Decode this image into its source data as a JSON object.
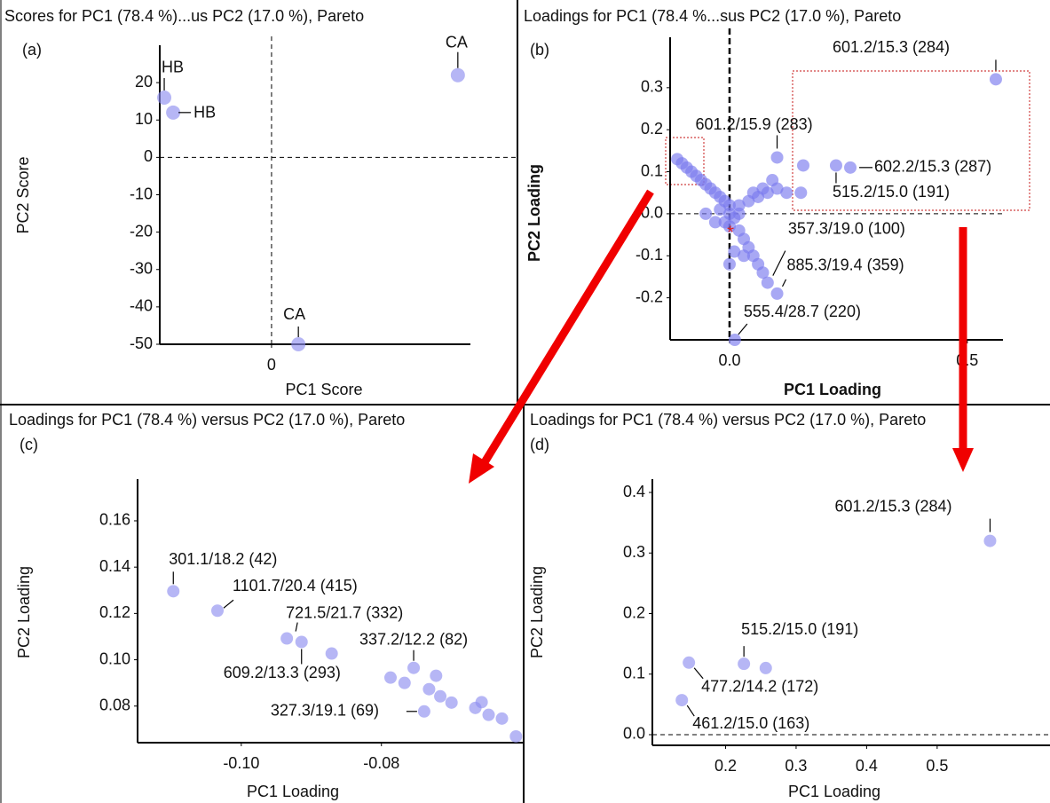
{
  "chart_data": [
    {
      "type": "scatter",
      "title": "Scores for PC1 (78.4 %)...us PC2 (17.0 %), Pareto",
      "panel": "(a)",
      "x_label": "PC1 Score",
      "y_label": "PC2 Score",
      "xlim": [
        -30,
        66
      ],
      "ylim": [
        -50,
        30
      ],
      "xticks": [
        0
      ],
      "yticks": [
        -50,
        -40,
        -30,
        -20,
        -10,
        0,
        10,
        20
      ],
      "zero_lines": [
        "x",
        "y"
      ],
      "series": [
        {
          "color": "#8f8ff0",
          "x": [
            -28.8,
            -26.4,
            50,
            7.2
          ],
          "values": [
            16,
            12,
            22,
            -50
          ],
          "labels": [
            "HB",
            "HB",
            "CA",
            "CA"
          ]
        }
      ]
    },
    {
      "type": "scatter",
      "title": "Loadings for PC1 (78.4 %...sus PC2 (17.0 %), Pareto",
      "panel": "(b)",
      "x_label": "PC1 Loading",
      "y_label": "PC2 Loading",
      "xlim": [
        -0.125,
        0.575
      ],
      "ylim": [
        -0.3,
        0.42
      ],
      "xticks": [
        {
          "value": 0,
          "label": "0.0"
        },
        0.5
      ],
      "yticks": [
        -0.2,
        -0.1,
        {
          "value": 0,
          "label": "0.0"
        },
        0.1,
        0.2,
        0.3
      ],
      "zero_lines": [
        "x",
        "y"
      ],
      "series": [
        {
          "color": "#7a7aee",
          "x": [
            0.56,
            0.1,
            0.254,
            0.224,
            0.08,
            0.1,
            0.011,
            -0.11,
            -0.1,
            -0.09,
            -0.08,
            -0.07,
            -0.06,
            -0.05,
            -0.04,
            -0.03,
            -0.02,
            -0.01,
            0,
            0,
            0.01,
            0,
            -0.01,
            0.02,
            0.02,
            0.04,
            0.06,
            0.08,
            0.1,
            0.12,
            0.15,
            0.155,
            0.09,
            0.07,
            0.05,
            0.02,
            0.03,
            0.04,
            0.05,
            0.06,
            0.07,
            0,
            0.01,
            0.03,
            -0.03,
            -0.05,
            -0.02
          ],
          "values": [
            0.32,
            0.134,
            0.11,
            0.115,
            -0.164,
            -0.19,
            -0.3,
            0.13,
            0.12,
            0.11,
            0.1,
            0.09,
            0.08,
            0.07,
            0.06,
            0.05,
            0.04,
            0.03,
            0.02,
            0,
            -0.01,
            -0.03,
            -0.02,
            0,
            0.02,
            0.03,
            0.04,
            0.05,
            0.06,
            0.05,
            0.05,
            0.115,
            0.08,
            0.06,
            0.05,
            -0.04,
            -0.06,
            -0.08,
            -0.1,
            -0.12,
            -0.14,
            -0.12,
            -0.09,
            -0.1,
            -0.02,
            0,
            0.01
          ],
          "labels": [
            "601.2/15.3 (284)",
            "601.2/15.9 (283)",
            "602.2/15.3 (287)",
            "515.2/15.0 (191)",
            "357.3/19.0 (100)",
            "885.3/19.4 (359)",
            "555.4/28.7 (220)",
            null,
            null,
            null,
            null,
            null,
            null,
            null,
            null,
            null,
            null,
            null,
            null,
            null,
            null,
            null,
            null,
            null,
            null,
            null,
            null,
            null,
            null,
            null,
            null,
            null,
            null,
            null,
            null,
            null,
            null,
            null,
            null,
            null,
            null,
            null,
            null,
            null,
            null,
            null,
            null
          ]
        }
      ]
    },
    {
      "type": "scatter",
      "title": "Loadings for PC1 (78.4 %) versus PC2 (17.0 %), Pareto",
      "panel": "(c)",
      "x_label": "PC1 Loading",
      "y_label": "PC2 Loading",
      "xlim": [
        -0.1148,
        -0.0597
      ],
      "ylim": [
        0.0642,
        0.178
      ],
      "xticks": [
        {
          "value": -0.1,
          "label": "-0.10"
        },
        -0.08
      ],
      "yticks": [
        0.08,
        {
          "value": 0.1,
          "label": "0.10"
        },
        0.12,
        0.14,
        0.16
      ],
      "zero_lines": [],
      "series": [
        {
          "color": "#8f8ff0",
          "x": [
            -0.1097,
            -0.1034,
            -0.0935,
            -0.0914,
            -0.0754,
            -0.0739,
            -0.0871,
            -0.0787,
            -0.0767,
            -0.0732,
            -0.0722,
            -0.0716,
            -0.07,
            -0.0666,
            -0.0657,
            -0.0647,
            -0.0628,
            -0.0608
          ],
          "values": [
            0.1296,
            0.1212,
            0.1092,
            0.1077,
            0.0965,
            0.0777,
            0.1027,
            0.0923,
            0.09,
            0.0873,
            0.0931,
            0.0842,
            0.0815,
            0.0792,
            0.0817,
            0.0762,
            0.0746,
            0.0669
          ],
          "labels": [
            "301.1/18.2 (42)",
            "1101.7/20.4 (415)",
            "721.5/21.7 (332)",
            "609.2/13.3 (293)",
            "337.2/12.2 (82)",
            "327.3/19.1 (69)",
            null,
            null,
            null,
            null,
            null,
            null,
            null,
            null,
            null,
            null,
            null,
            null
          ]
        }
      ]
    },
    {
      "type": "scatter",
      "title": "Loadings for PC1 (78.4 %) versus PC2 (17.0 %), Pareto",
      "panel": "(d)",
      "x_label": "PC1 Loading",
      "y_label": "PC2 Loading",
      "xlim": [
        0.0962,
        0.66
      ],
      "ylim": [
        -0.0176,
        0.422
      ],
      "xticks": [
        0.2,
        0.3,
        0.4,
        0.5
      ],
      "yticks": [
        {
          "value": 0,
          "label": "0.0"
        },
        0.1,
        0.2,
        0.3,
        0.4
      ],
      "zero_lines": [
        "y"
      ],
      "series": [
        {
          "color": "#8f8ff0",
          "x": [
            0.575,
            0.226,
            0.257,
            0.148,
            0.138
          ],
          "values": [
            0.32,
            0.117,
            0.11,
            0.119,
            0.057
          ],
          "labels": [
            "601.2/15.3 (284)",
            "515.2/15.0 (191)",
            null,
            "477.2/14.2 (172)",
            "461.2/15.0 (163)"
          ]
        }
      ]
    }
  ]
}
